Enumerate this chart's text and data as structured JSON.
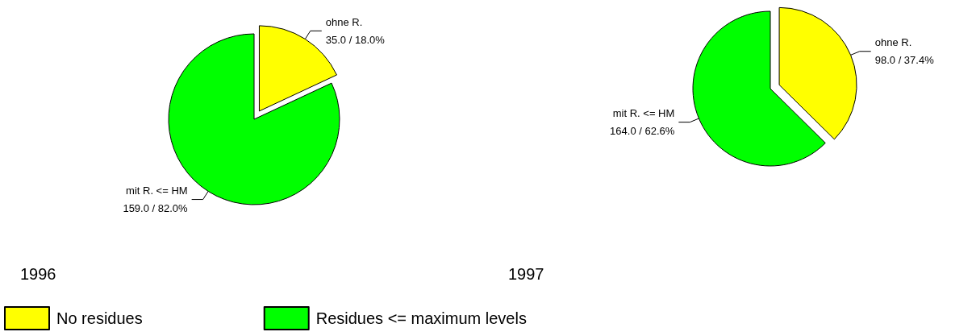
{
  "chart_data": [
    {
      "type": "pie",
      "title": "1996",
      "categories": [
        "No residues",
        "Residues <= maximum levels"
      ],
      "values": [
        35.0,
        159.0
      ],
      "colors": [
        "#ffff00",
        "#00ff00"
      ],
      "value_labels": [
        "ohne R.\n35.0 / 18.0%",
        "mit R. <= HM\n159.0 / 82.0%"
      ],
      "legend": "bottom"
    },
    {
      "type": "pie",
      "title": "1997",
      "categories": [
        null,
        null
      ],
      "values": [
        98.0,
        164.0
      ],
      "colors": [
        "#ffff00",
        "#00ff00"
      ],
      "value_labels": [
        "ohne R.\n98.0 / 37.4%",
        "mit R. <= HM\n164.0 / 62.6%"
      ]
    }
  ]
}
